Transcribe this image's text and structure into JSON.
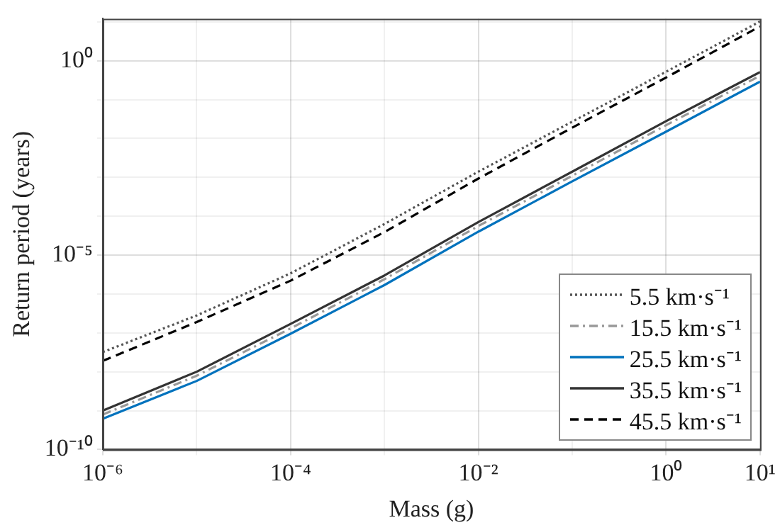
{
  "chart_data": {
    "type": "line",
    "xlabel": "Mass (g)",
    "ylabel": "Return period (years)",
    "log": "xy",
    "grid": true,
    "legend": "bottom right",
    "marker": "none",
    "x": [
      1e-06,
      1e-05,
      0.0001,
      0.001,
      0.01,
      0.1,
      1,
      10
    ],
    "xlim": [
      1e-06,
      10
    ],
    "xticks": [
      {
        "value": 1e-06,
        "label": "10⁻⁶"
      },
      {
        "value": 1e-05,
        "label": null
      },
      {
        "value": 0.0001,
        "label": "10⁻⁴"
      },
      {
        "value": 0.001,
        "label": null
      },
      {
        "value": 0.01,
        "label": "10⁻²"
      },
      {
        "value": 0.1,
        "label": null
      },
      {
        "value": 1,
        "label": "10⁰"
      },
      {
        "value": 10,
        "label": "10¹"
      }
    ],
    "ylim": [
      1e-10,
      12
    ],
    "yticks": [
      {
        "value": 1e-10,
        "label": "10⁻¹⁰"
      },
      {
        "value": 1e-09,
        "label": null
      },
      {
        "value": 1e-08,
        "label": null
      },
      {
        "value": 1e-07,
        "label": null
      },
      {
        "value": 1e-06,
        "label": null
      },
      {
        "value": 1e-05,
        "label": "10⁻⁵"
      },
      {
        "value": 0.0001,
        "label": null
      },
      {
        "value": 0.001,
        "label": null
      },
      {
        "value": 0.01,
        "label": null
      },
      {
        "value": 0.1,
        "label": null
      },
      {
        "value": 1,
        "label": "10⁰"
      },
      {
        "value": 10,
        "label": null
      }
    ],
    "series": [
      {
        "name": "5.5 km·s⁻¹",
        "color": "#555555",
        "line_style": "dotted",
        "values": [
          3.2e-08,
          2.8e-07,
          3.4e-06,
          6.3e-05,
          0.0014,
          0.027,
          0.52,
          10.2
        ]
      },
      {
        "name": "15.5 km·s⁻¹",
        "color": "#999999",
        "line_style": "dashdot",
        "values": [
          7.9e-10,
          7.9e-09,
          1.3e-07,
          2.4e-06,
          5.6e-05,
          0.0011,
          0.022,
          0.41
        ]
      },
      {
        "name": "25.5 km·s⁻¹",
        "color": "#0072bd",
        "line_style": "solid",
        "values": [
          6.2e-10,
          5.8e-09,
          9.5e-08,
          1.7e-06,
          4e-05,
          0.00079,
          0.015,
          0.29
        ]
      },
      {
        "name": "35.5 km·s⁻¹",
        "color": "#333333",
        "line_style": "solid",
        "values": [
          1e-09,
          1e-08,
          1.7e-07,
          3e-06,
          7.1e-05,
          0.0014,
          0.028,
          0.51
        ]
      },
      {
        "name": "45.5 km·s⁻¹",
        "color": "#000000",
        "line_style": "dashed",
        "values": [
          1.9e-08,
          1.9e-07,
          2.2e-06,
          3.9e-05,
          0.00093,
          0.019,
          0.37,
          7.6
        ]
      }
    ]
  }
}
